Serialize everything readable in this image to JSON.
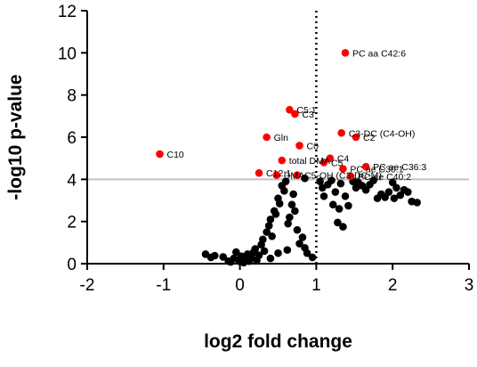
{
  "chart_data": {
    "type": "scatter",
    "xlabel": "log2 fold change",
    "ylabel": "-log10 p-value",
    "xlim": [
      -2,
      3
    ],
    "ylim": [
      0,
      12
    ],
    "x_ticks": [
      "-2",
      "-1",
      "0",
      "1",
      "2",
      "3"
    ],
    "y_ticks": [
      "0",
      "2",
      "4",
      "6",
      "8",
      "10",
      "12"
    ],
    "grid": false,
    "threshold_y": 4,
    "threshold_x": 1,
    "colors": {
      "significant": "#ff0000",
      "other": "#000000",
      "threshold_line": "#c0c0c0"
    },
    "significant_points": [
      {
        "x": 1.38,
        "y": 10.0,
        "label": "PC aa C42:6"
      },
      {
        "x": 0.65,
        "y": 7.3,
        "label": "C5:1"
      },
      {
        "x": 0.72,
        "y": 7.1,
        "label": "C3"
      },
      {
        "x": 1.33,
        "y": 6.2,
        "label": "C3-DC (C4-OH)"
      },
      {
        "x": 1.52,
        "y": 6.0,
        "label": "C2"
      },
      {
        "x": 0.35,
        "y": 6.0,
        "label": "Gln"
      },
      {
        "x": 0.78,
        "y": 5.6,
        "label": "C0"
      },
      {
        "x": -1.05,
        "y": 5.2,
        "label": "C10"
      },
      {
        "x": 1.18,
        "y": 5.0,
        "label": "C4"
      },
      {
        "x": 1.1,
        "y": 4.8,
        "label": "C5"
      },
      {
        "x": 0.55,
        "y": 4.9,
        "label": "total DMA"
      },
      {
        "x": 1.65,
        "y": 4.6,
        "label": "PC ae C36:3"
      },
      {
        "x": 1.35,
        "y": 4.5,
        "label": "PC ae C30:1"
      },
      {
        "x": 0.25,
        "y": 4.3,
        "label": "C12:1"
      },
      {
        "x": 0.48,
        "y": 4.2,
        "label": "DMA"
      },
      {
        "x": 1.45,
        "y": 4.15,
        "label": "PC ae C40:2"
      },
      {
        "x": 0.75,
        "y": 4.2,
        "label": "C5-OH (C3-DC-M)"
      }
    ],
    "other_points": [
      {
        "x": -0.45,
        "y": 0.45
      },
      {
        "x": -0.38,
        "y": 0.3
      },
      {
        "x": -0.33,
        "y": 0.38
      },
      {
        "x": -0.22,
        "y": 0.32
      },
      {
        "x": -0.15,
        "y": 0.12
      },
      {
        "x": -0.12,
        "y": 0.08
      },
      {
        "x": -0.08,
        "y": 0.25
      },
      {
        "x": -0.05,
        "y": 0.55
      },
      {
        "x": -0.02,
        "y": 0.18
      },
      {
        "x": 0.0,
        "y": 0.1
      },
      {
        "x": 0.02,
        "y": 0.35
      },
      {
        "x": 0.05,
        "y": 0.05
      },
      {
        "x": 0.07,
        "y": 0.22
      },
      {
        "x": 0.1,
        "y": 0.45
      },
      {
        "x": 0.12,
        "y": 0.12
      },
      {
        "x": 0.15,
        "y": 0.3
      },
      {
        "x": 0.18,
        "y": 0.55
      },
      {
        "x": 0.2,
        "y": 0.7
      },
      {
        "x": 0.22,
        "y": 0.15
      },
      {
        "x": 0.25,
        "y": 0.4
      },
      {
        "x": 0.28,
        "y": 0.9
      },
      {
        "x": 0.3,
        "y": 1.15
      },
      {
        "x": 0.32,
        "y": 0.6
      },
      {
        "x": 0.35,
        "y": 1.5
      },
      {
        "x": 0.38,
        "y": 1.8
      },
      {
        "x": 0.4,
        "y": 2.1
      },
      {
        "x": 0.42,
        "y": 1.3
      },
      {
        "x": 0.45,
        "y": 2.5
      },
      {
        "x": 0.47,
        "y": 2.35
      },
      {
        "x": 0.5,
        "y": 3.1
      },
      {
        "x": 0.52,
        "y": 2.85
      },
      {
        "x": 0.55,
        "y": 3.7
      },
      {
        "x": 0.58,
        "y": 3.45
      },
      {
        "x": 0.6,
        "y": 3.9
      },
      {
        "x": 0.63,
        "y": 1.9
      },
      {
        "x": 0.65,
        "y": 2.2
      },
      {
        "x": 0.68,
        "y": 2.8
      },
      {
        "x": 0.7,
        "y": 3.3
      },
      {
        "x": 0.72,
        "y": 2.5
      },
      {
        "x": 0.75,
        "y": 1.6
      },
      {
        "x": 0.78,
        "y": 0.95
      },
      {
        "x": 0.82,
        "y": 1.25
      },
      {
        "x": 0.85,
        "y": 0.75
      },
      {
        "x": 0.88,
        "y": 0.5
      },
      {
        "x": 0.4,
        "y": 0.25
      },
      {
        "x": 0.5,
        "y": 0.5
      },
      {
        "x": 0.62,
        "y": 0.65
      },
      {
        "x": 0.95,
        "y": 0.3
      },
      {
        "x": 0.85,
        "y": 4.05
      },
      {
        "x": 1.05,
        "y": 3.9
      },
      {
        "x": 1.08,
        "y": 3.6
      },
      {
        "x": 1.1,
        "y": 3.2
      },
      {
        "x": 1.15,
        "y": 3.75
      },
      {
        "x": 1.2,
        "y": 3.95
      },
      {
        "x": 1.22,
        "y": 2.8
      },
      {
        "x": 1.25,
        "y": 3.4
      },
      {
        "x": 1.28,
        "y": 1.95
      },
      {
        "x": 1.3,
        "y": 2.6
      },
      {
        "x": 1.32,
        "y": 3.8
      },
      {
        "x": 1.35,
        "y": 1.75
      },
      {
        "x": 1.38,
        "y": 3.2
      },
      {
        "x": 1.42,
        "y": 2.75
      },
      {
        "x": 1.48,
        "y": 3.9
      },
      {
        "x": 1.52,
        "y": 3.6
      },
      {
        "x": 1.55,
        "y": 3.85
      },
      {
        "x": 1.6,
        "y": 3.7
      },
      {
        "x": 1.65,
        "y": 3.5
      },
      {
        "x": 1.7,
        "y": 3.75
      },
      {
        "x": 1.75,
        "y": 3.95
      },
      {
        "x": 1.8,
        "y": 3.1
      },
      {
        "x": 1.85,
        "y": 3.3
      },
      {
        "x": 1.9,
        "y": 3.15
      },
      {
        "x": 1.95,
        "y": 3.4
      },
      {
        "x": 2.0,
        "y": 3.85
      },
      {
        "x": 2.02,
        "y": 3.1
      },
      {
        "x": 2.05,
        "y": 3.6
      },
      {
        "x": 2.1,
        "y": 3.25
      },
      {
        "x": 2.15,
        "y": 3.5
      },
      {
        "x": 2.2,
        "y": 3.4
      },
      {
        "x": 2.25,
        "y": 2.95
      },
      {
        "x": 2.32,
        "y": 2.9
      }
    ]
  }
}
